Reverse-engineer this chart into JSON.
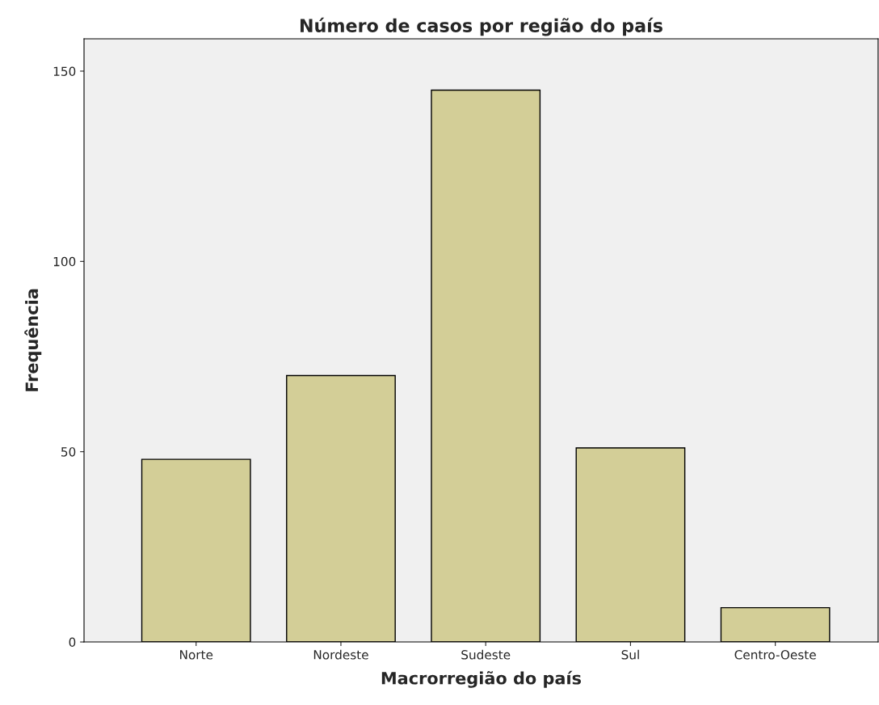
{
  "chart_data": {
    "type": "bar",
    "title": "Número de casos por região do país",
    "xlabel": "Macrorregião do país",
    "ylabel": "Frequência",
    "categories": [
      "Norte",
      "Nordeste",
      "Sudeste",
      "Sul",
      "Centro-Oeste"
    ],
    "values": [
      48,
      70,
      145,
      51,
      9
    ],
    "color": "#d3ce97",
    "ylim": [
      0,
      158.5
    ],
    "yticks": [
      0,
      50,
      100,
      150
    ],
    "grid": false
  }
}
